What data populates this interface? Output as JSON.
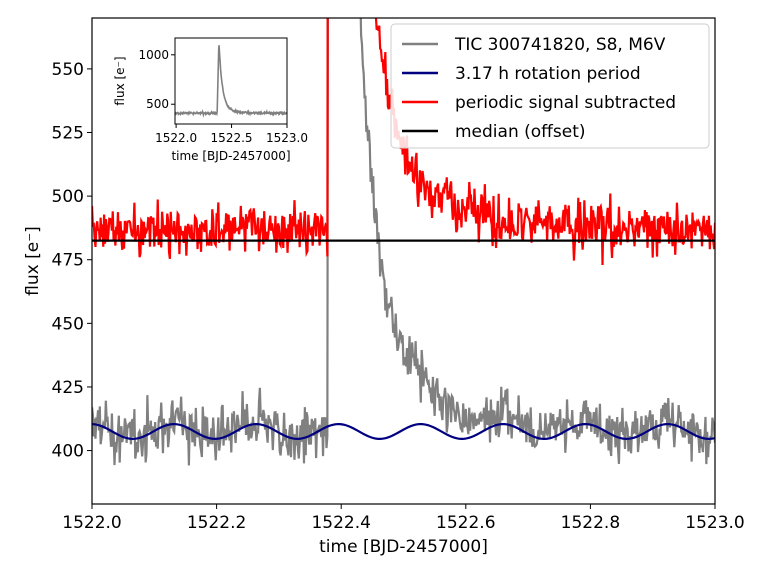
{
  "chart_data": [
    {
      "id": "main",
      "type": "line",
      "xlabel": "time [BJD-2457000]",
      "ylabel": "flux [e⁻]",
      "xlim": [
        1522.0,
        1523.0
      ],
      "ylim": [
        379,
        570
      ],
      "xticks": [
        1522.0,
        1522.2,
        1522.4,
        1522.6,
        1522.8,
        1523.0
      ],
      "xtick_labels": [
        "1522.0",
        "1522.2",
        "1522.4",
        "1522.6",
        "1522.8",
        "1523.0"
      ],
      "yticks": [
        400,
        425,
        450,
        475,
        500,
        525,
        550
      ],
      "ytick_labels": [
        "400",
        "425",
        "450",
        "475",
        "500",
        "525",
        "550"
      ],
      "grid": false,
      "legend_position": "top-right",
      "flare": {
        "start": 1522.378,
        "peak": 1522.381,
        "decay_tau_days": 0.03,
        "peak_flux": 1100
      },
      "noise_std": 5,
      "series": [
        {
          "name": "TIC 300741820, S8, M6V",
          "color": "#808080",
          "model": "rotation + flare + noise",
          "baseline": 410
        },
        {
          "name": "3.17 h rotation period",
          "color": "#000080",
          "model": "sinusoid",
          "period_hours": 3.17,
          "mean": 407.5,
          "amplitude": 2.9,
          "phase_at_start": 1.6,
          "samples": {
            "x": [
              1522.0,
              1522.044,
              1522.11,
              1522.176,
              1522.242,
              1522.308,
              1522.374,
              1522.44,
              1522.506,
              1522.572,
              1522.638,
              1522.704,
              1522.77,
              1522.836,
              1522.902,
              1522.968,
              1523.0
            ],
            "y": [
              406.0,
              410.4,
              404.6,
              410.4,
              404.6,
              410.4,
              404.6,
              410.4,
              404.6,
              410.4,
              404.6,
              410.4,
              404.6,
              410.4,
              404.6,
              410.4,
              408.5
            ]
          }
        },
        {
          "name": "periodic signal subtracted",
          "color": "#ff0000",
          "model": "flare + noise, offset",
          "baseline": 487
        },
        {
          "name": "median (offset)",
          "color": "#000000",
          "model": "constant",
          "value": 482.5
        }
      ]
    },
    {
      "id": "inset",
      "type": "line",
      "xlabel": "time [BJD-2457000]",
      "ylabel": "flux [e⁻]",
      "xlim": [
        1521.99,
        1523.0
      ],
      "ylim": [
        300,
        1170
      ],
      "xticks": [
        1522.0,
        1522.5,
        1523.0
      ],
      "xtick_labels": [
        "1522.0",
        "1522.5",
        "1523.0"
      ],
      "yticks": [
        500,
        1000
      ],
      "ytick_labels": [
        "500",
        "1000"
      ],
      "series": [
        {
          "name": "",
          "color": "#808080",
          "baseline": 410,
          "peak_flux": 1100
        }
      ]
    }
  ]
}
